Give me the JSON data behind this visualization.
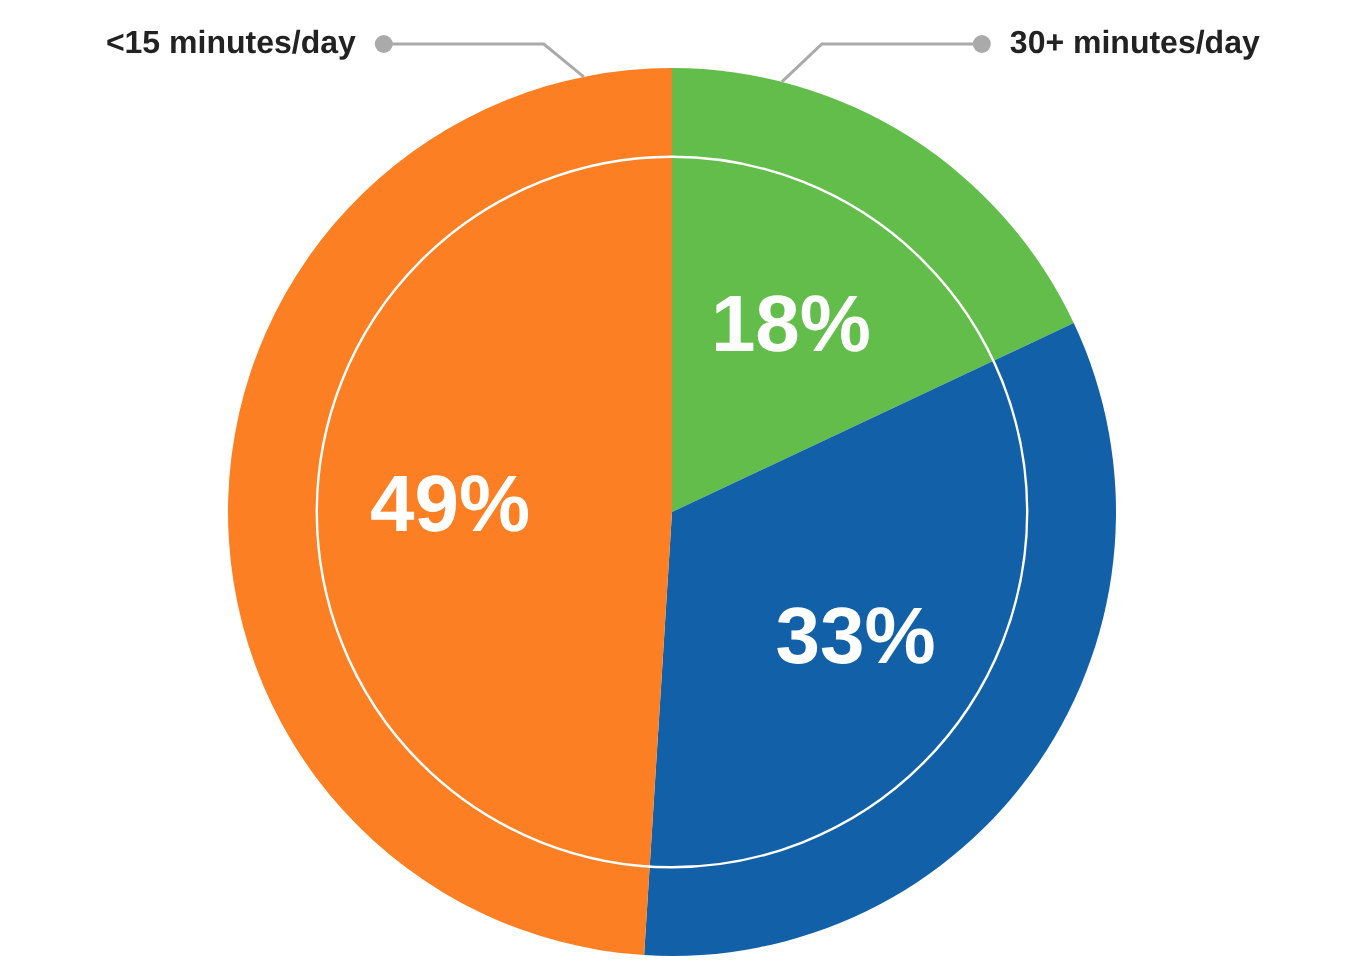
{
  "chart_data": {
    "type": "pie",
    "categories": [
      "30+ minutes/day",
      null,
      "<15 minutes/day"
    ],
    "values": [
      18,
      33,
      49
    ],
    "colors": [
      "#62bd4b",
      "#1260a8",
      "#fd7f23"
    ],
    "data_labels": true,
    "value_labels": [
      "18%",
      "33%",
      "49%"
    ]
  }
}
